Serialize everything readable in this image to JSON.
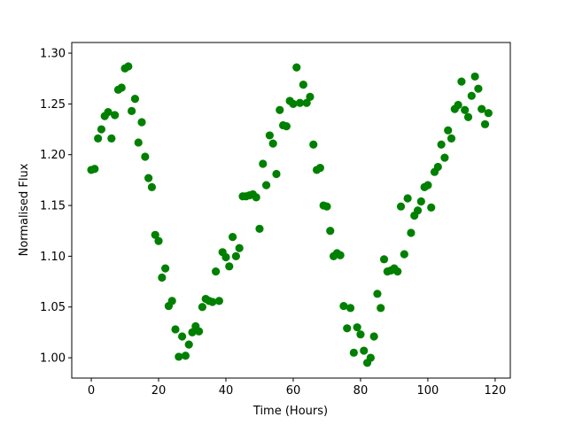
{
  "chart_data": {
    "type": "scatter",
    "title": "",
    "xlabel": "Time (Hours)",
    "ylabel": "Normalised Flux",
    "xlim": [
      -5.8,
      124.5
    ],
    "ylim": [
      0.98,
      1.3105
    ],
    "xticks": [
      0,
      20,
      40,
      60,
      80,
      100,
      120
    ],
    "yticks": [
      1.0,
      1.05,
      1.1,
      1.15,
      1.2,
      1.25,
      1.3
    ],
    "grid": false,
    "marker_color": "#008000",
    "x": [
      0,
      1,
      2,
      3,
      4,
      5,
      6,
      7,
      8,
      9,
      10,
      11,
      12,
      13,
      14,
      15,
      16,
      17,
      18,
      19,
      20,
      21,
      22,
      23,
      24,
      25,
      26,
      27,
      28,
      29,
      30,
      31,
      32,
      33,
      34,
      35,
      36,
      37,
      38,
      39,
      40,
      41,
      42,
      43,
      44,
      45,
      46,
      47,
      48,
      49,
      50,
      51,
      52,
      53,
      54,
      55,
      56,
      57,
      58,
      59,
      60,
      61,
      62,
      63,
      64,
      65,
      66,
      67,
      68,
      69,
      70,
      71,
      72,
      73,
      74,
      75,
      76,
      77,
      78,
      79,
      80,
      81,
      82,
      83,
      84,
      85,
      86,
      87,
      88,
      89,
      90,
      91,
      92,
      93,
      94,
      95,
      96,
      97,
      98,
      99,
      100,
      101,
      102,
      103,
      104,
      105,
      106,
      107,
      108,
      109,
      110,
      111,
      112,
      113,
      114,
      115,
      116,
      117,
      118
    ],
    "y": [
      1.185,
      1.186,
      1.216,
      1.225,
      1.238,
      1.242,
      1.216,
      1.239,
      1.264,
      1.266,
      1.285,
      1.287,
      1.243,
      1.255,
      1.212,
      1.232,
      1.198,
      1.177,
      1.168,
      1.121,
      1.115,
      1.079,
      1.088,
      1.051,
      1.056,
      1.028,
      1.001,
      1.021,
      1.002,
      1.013,
      1.025,
      1.031,
      1.026,
      1.05,
      1.058,
      1.056,
      1.055,
      1.085,
      1.056,
      1.104,
      1.099,
      1.09,
      1.119,
      1.1,
      1.108,
      1.159,
      1.159,
      1.16,
      1.161,
      1.158,
      1.127,
      1.191,
      1.17,
      1.219,
      1.211,
      1.181,
      1.244,
      1.229,
      1.228,
      1.253,
      1.25,
      1.286,
      1.251,
      1.269,
      1.251,
      1.257,
      1.21,
      1.185,
      1.187,
      1.15,
      1.149,
      1.125,
      1.1,
      1.103,
      1.101,
      1.051,
      1.029,
      1.049,
      1.005,
      1.03,
      1.023,
      1.007,
      0.995,
      1.0,
      1.021,
      1.063,
      1.049,
      1.097,
      1.085,
      1.086,
      1.088,
      1.085,
      1.149,
      1.102,
      1.157,
      1.123,
      1.14,
      1.145,
      1.154,
      1.168,
      1.17,
      1.148,
      1.183,
      1.188,
      1.21,
      1.197,
      1.224,
      1.216,
      1.245,
      1.249,
      1.272,
      1.244,
      1.237,
      1.258,
      1.277,
      1.265,
      1.245,
      1.23,
      1.241
    ]
  }
}
